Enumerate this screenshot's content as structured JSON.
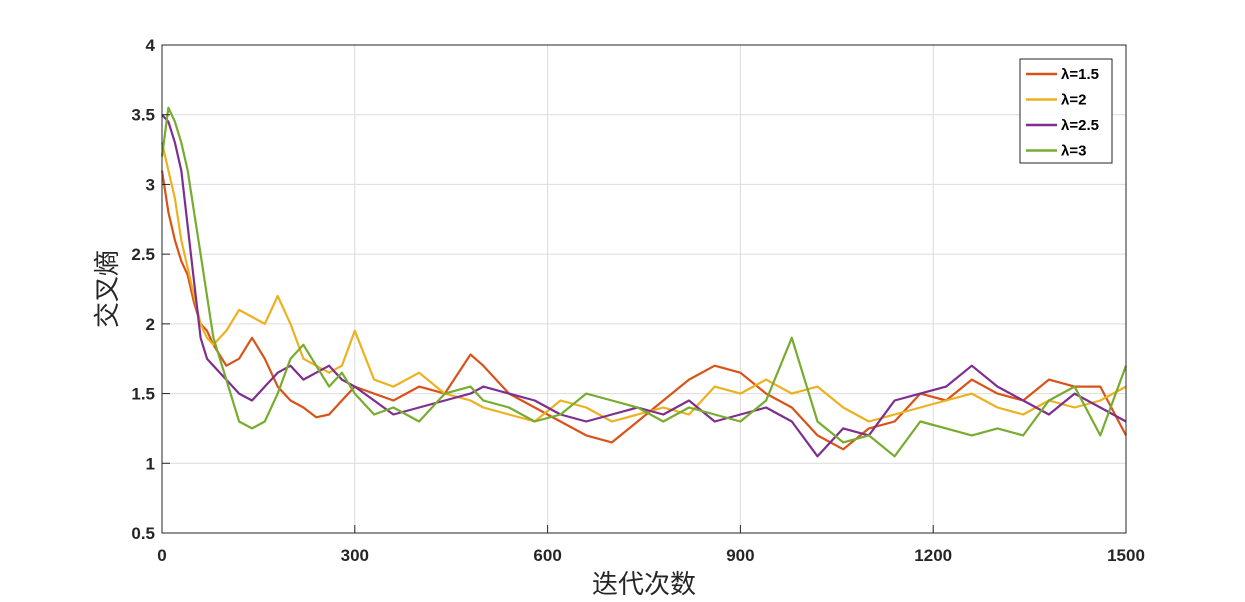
{
  "chart_data": {
    "type": "line",
    "xlabel": "迭代次数",
    "ylabel": "交叉熵",
    "xlim": [
      0,
      1500
    ],
    "ylim": [
      0.5,
      4
    ],
    "xticks": [
      "0",
      "300",
      "600",
      "900",
      "1200",
      "1500"
    ],
    "yticks": [
      "0.5",
      "1",
      "1.5",
      "2",
      "2.5",
      "3",
      "3.5",
      "4"
    ],
    "grid": true,
    "legend_position": "top-right",
    "series": [
      {
        "name": "λ=1.5",
        "color": "#D95319",
        "x": [
          0,
          10,
          20,
          30,
          40,
          50,
          60,
          70,
          80,
          100,
          120,
          140,
          160,
          180,
          200,
          220,
          240,
          260,
          280,
          300,
          330,
          360,
          400,
          440,
          480,
          500,
          540,
          580,
          620,
          660,
          700,
          740,
          780,
          820,
          860,
          900,
          940,
          980,
          1020,
          1060,
          1100,
          1140,
          1180,
          1220,
          1260,
          1300,
          1340,
          1380,
          1420,
          1460,
          1500
        ],
        "values": [
          3.1,
          2.8,
          2.6,
          2.45,
          2.35,
          2.15,
          2.0,
          1.95,
          1.85,
          1.7,
          1.75,
          1.9,
          1.75,
          1.55,
          1.45,
          1.4,
          1.33,
          1.35,
          1.45,
          1.55,
          1.5,
          1.45,
          1.55,
          1.5,
          1.78,
          1.7,
          1.5,
          1.4,
          1.3,
          1.2,
          1.15,
          1.3,
          1.45,
          1.6,
          1.7,
          1.65,
          1.5,
          1.4,
          1.2,
          1.1,
          1.25,
          1.3,
          1.5,
          1.45,
          1.6,
          1.5,
          1.45,
          1.6,
          1.55,
          1.55,
          1.2
        ]
      },
      {
        "name": "λ=2",
        "color": "#EDB120",
        "x": [
          0,
          10,
          20,
          30,
          40,
          50,
          60,
          70,
          80,
          100,
          120,
          140,
          160,
          180,
          200,
          220,
          240,
          260,
          280,
          300,
          330,
          360,
          400,
          440,
          480,
          500,
          540,
          580,
          620,
          660,
          700,
          740,
          780,
          820,
          860,
          900,
          940,
          980,
          1020,
          1060,
          1100,
          1140,
          1180,
          1220,
          1260,
          1300,
          1340,
          1380,
          1420,
          1460,
          1500
        ],
        "values": [
          3.3,
          3.1,
          2.9,
          2.6,
          2.4,
          2.2,
          2.0,
          1.9,
          1.85,
          1.95,
          2.1,
          2.05,
          2.0,
          2.2,
          2.0,
          1.75,
          1.7,
          1.65,
          1.7,
          1.95,
          1.6,
          1.55,
          1.65,
          1.5,
          1.45,
          1.4,
          1.35,
          1.3,
          1.45,
          1.4,
          1.3,
          1.35,
          1.4,
          1.35,
          1.55,
          1.5,
          1.6,
          1.5,
          1.55,
          1.4,
          1.3,
          1.35,
          1.4,
          1.45,
          1.5,
          1.4,
          1.35,
          1.45,
          1.4,
          1.45,
          1.55
        ]
      },
      {
        "name": "λ=2.5",
        "color": "#7E2F8E",
        "x": [
          0,
          10,
          20,
          30,
          40,
          50,
          60,
          70,
          80,
          100,
          120,
          140,
          160,
          180,
          200,
          220,
          240,
          260,
          280,
          300,
          330,
          360,
          400,
          440,
          480,
          500,
          540,
          580,
          620,
          660,
          700,
          740,
          780,
          820,
          860,
          900,
          940,
          980,
          1020,
          1060,
          1100,
          1140,
          1180,
          1220,
          1260,
          1300,
          1340,
          1380,
          1420,
          1460,
          1500
        ],
        "values": [
          3.5,
          3.45,
          3.3,
          3.1,
          2.7,
          2.3,
          1.9,
          1.75,
          1.7,
          1.6,
          1.5,
          1.45,
          1.55,
          1.65,
          1.7,
          1.6,
          1.65,
          1.7,
          1.6,
          1.55,
          1.45,
          1.35,
          1.4,
          1.45,
          1.5,
          1.55,
          1.5,
          1.45,
          1.35,
          1.3,
          1.35,
          1.4,
          1.35,
          1.45,
          1.3,
          1.35,
          1.4,
          1.3,
          1.05,
          1.25,
          1.2,
          1.45,
          1.5,
          1.55,
          1.7,
          1.55,
          1.45,
          1.35,
          1.5,
          1.4,
          1.3
        ]
      },
      {
        "name": "λ=3",
        "color": "#77AC30",
        "x": [
          0,
          10,
          20,
          30,
          40,
          50,
          60,
          70,
          80,
          100,
          120,
          140,
          160,
          180,
          200,
          220,
          240,
          260,
          280,
          300,
          330,
          360,
          400,
          440,
          480,
          500,
          540,
          580,
          620,
          660,
          700,
          740,
          780,
          820,
          860,
          900,
          940,
          980,
          1020,
          1060,
          1100,
          1140,
          1180,
          1220,
          1260,
          1300,
          1340,
          1380,
          1420,
          1460,
          1500
        ],
        "values": [
          3.2,
          3.55,
          3.45,
          3.3,
          3.1,
          2.8,
          2.5,
          2.2,
          1.9,
          1.6,
          1.3,
          1.25,
          1.3,
          1.5,
          1.75,
          1.85,
          1.7,
          1.55,
          1.65,
          1.5,
          1.35,
          1.4,
          1.3,
          1.5,
          1.55,
          1.45,
          1.4,
          1.3,
          1.35,
          1.5,
          1.45,
          1.4,
          1.3,
          1.4,
          1.35,
          1.3,
          1.45,
          1.9,
          1.3,
          1.15,
          1.2,
          1.05,
          1.3,
          1.25,
          1.2,
          1.25,
          1.2,
          1.45,
          1.55,
          1.2,
          1.7
        ]
      }
    ]
  }
}
